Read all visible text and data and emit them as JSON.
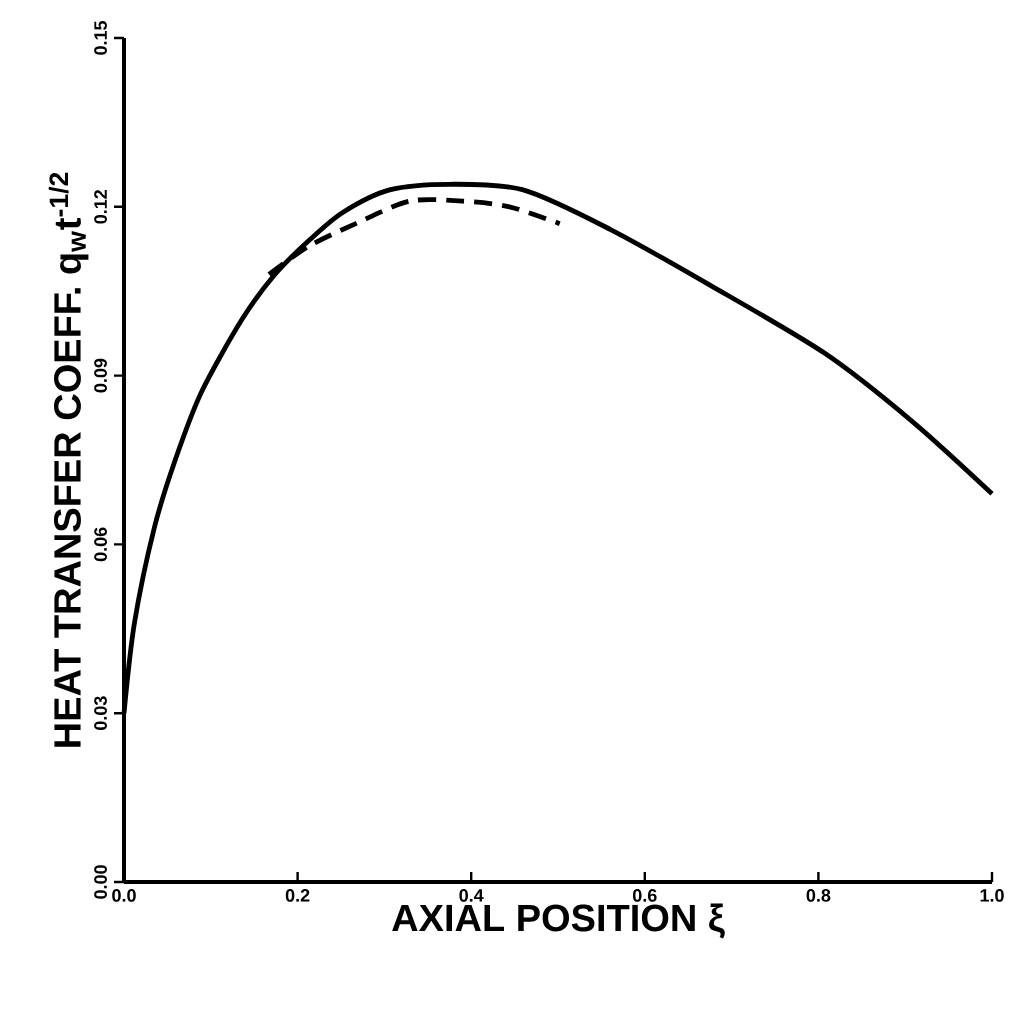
{
  "chart_data": {
    "type": "line",
    "xlabel": "AXIAL POSITION ξ",
    "ylabel": "HEAT TRANSFER COEFF. q$_{w}$t$^{-1/2}$",
    "xlim": [
      0,
      1.0
    ],
    "ylim": [
      0,
      0.15
    ],
    "xticks": [
      {
        "value": 0,
        "label": "0.0"
      },
      {
        "value": 0.2,
        "label": "0.2"
      },
      {
        "value": 0.4,
        "label": "0.4"
      },
      {
        "value": 0.6,
        "label": "0.6"
      },
      {
        "value": 0.8,
        "label": "0.8"
      },
      {
        "value": 1.0,
        "label": "1.0"
      }
    ],
    "yticks": [
      {
        "value": 0,
        "label": "0.00"
      },
      {
        "value": 0.03,
        "label": "0.03"
      },
      {
        "value": 0.06,
        "label": "0.06"
      },
      {
        "value": 0.09,
        "label": "0.09"
      },
      {
        "value": 0.12,
        "label": "0.12"
      },
      {
        "value": 0.15,
        "label": "0.15"
      }
    ],
    "series": [
      {
        "color": "#000000",
        "line_style": "solid",
        "x": [
          0,
          0.012,
          0.035,
          0.059,
          0.089,
          0.136,
          0.174,
          0.213,
          0.252,
          0.306,
          0.375,
          0.46,
          0.56,
          0.676,
          0.807,
          0.907,
          1.0
        ],
        "values": [
          0.03,
          0.046,
          0.063,
          0.075,
          0.087,
          0.1,
          0.108,
          0.114,
          0.119,
          0.123,
          0.124,
          0.123,
          0.116,
          0.106,
          0.094,
          0.082,
          0.069
        ]
      },
      {
        "color": "#000000",
        "line_style": "dashed",
        "x": [
          0.167,
          0.213,
          0.267,
          0.329,
          0.39,
          0.444,
          0.502
        ],
        "values": [
          0.108,
          0.113,
          0.117,
          0.121,
          0.121,
          0.12,
          0.117
        ]
      }
    ]
  }
}
